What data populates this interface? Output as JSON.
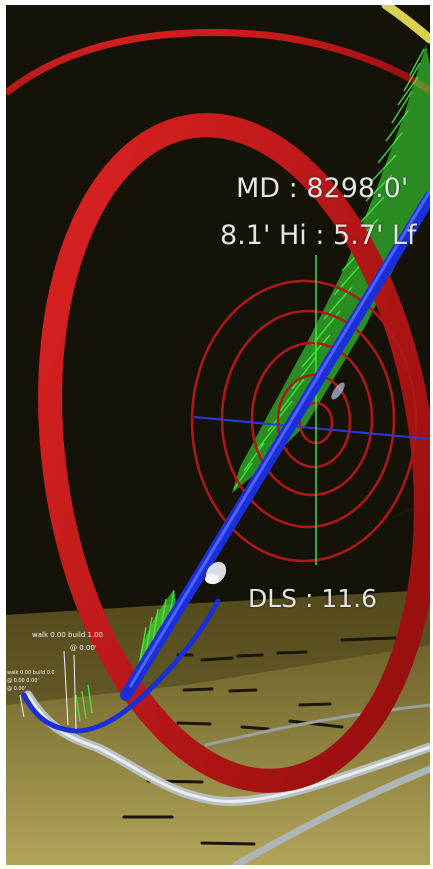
{
  "scene": {
    "name": "3D wellbore trajectory view",
    "colors": {
      "background": "#151208",
      "floor": "#8a7a33",
      "outer_ring": "#c41212",
      "target_rings": "#b01818",
      "wellbore": "#1a2fd8",
      "hairline": "#2a3bd8",
      "green_plot": "#3ef03a",
      "casing": "#b9c0c2"
    },
    "icons": [
      "drill-bit-icon"
    ]
  },
  "hud": {
    "md": "MD : 8298.0'",
    "offset": "8.1' Hi  : 5.7' Lf",
    "dls": "DLS : 11.6"
  },
  "mini_labels": {
    "walk_build": "walk 0.00 build 1.00",
    "angle": "@ 0.00'",
    "left_line_1": "walk 0.00 build 0.0",
    "left_line_2": "@ 0.00 0.00'",
    "left_line_3": "@ 0.00'"
  }
}
